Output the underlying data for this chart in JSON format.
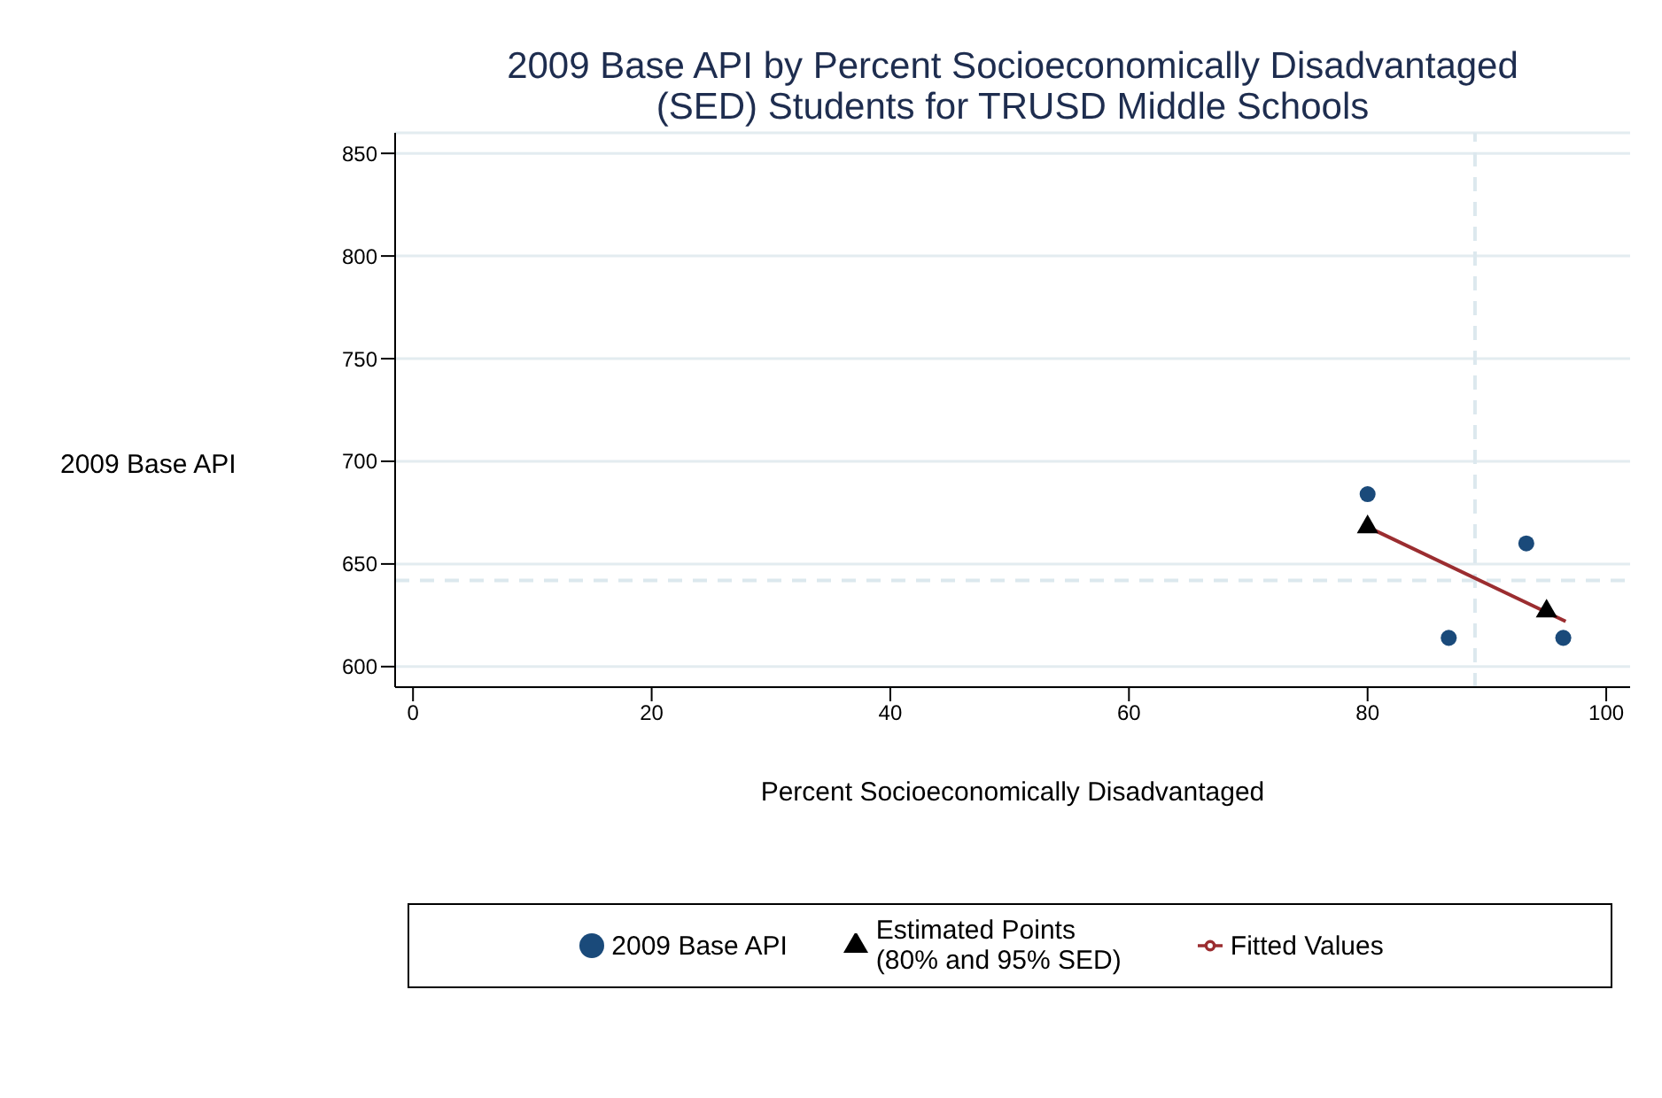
{
  "chart_data": {
    "type": "scatter",
    "title": "2009 Base API by Percent Socioeconomically Disadvantaged (SED) Students for TRUSD Middle Schools",
    "xlabel": "Percent Socioeconomically Disadvantaged",
    "ylabel": "2009 Base API",
    "xlim": [
      -1.5,
      102
    ],
    "xticks": [
      0,
      20,
      40,
      60,
      80,
      100
    ],
    "ylim": [
      590,
      860
    ],
    "yticks": [
      600,
      650,
      700,
      750,
      800,
      850
    ],
    "grid": "y",
    "legend": "bottom",
    "series": [
      {
        "name": "2009 Base API",
        "marker": "circle",
        "color": "#1a4a7a",
        "x": [
          80,
          93.3,
          86.8,
          96.4
        ],
        "values": [
          684,
          660,
          614,
          614
        ]
      },
      {
        "name": "Fitted Values",
        "type": "line",
        "marker": "none",
        "line_style": "solid",
        "color": "#9b2d30",
        "x": [
          80,
          96.6
        ],
        "values": [
          668,
          622
        ]
      },
      {
        "name": "Estimated Points (80% and 95% SED)",
        "type": "scatter",
        "marker": "triangle",
        "color": "#000000",
        "x": [
          80,
          95
        ],
        "values": [
          668,
          627
        ]
      }
    ],
    "ref_lines": [
      {
        "axis": "x",
        "value": 89,
        "color": "#dce8ee",
        "line_style": "dashed"
      },
      {
        "axis": "y",
        "value": 642,
        "color": "#dce8ee",
        "line_style": "dashed"
      }
    ]
  }
}
